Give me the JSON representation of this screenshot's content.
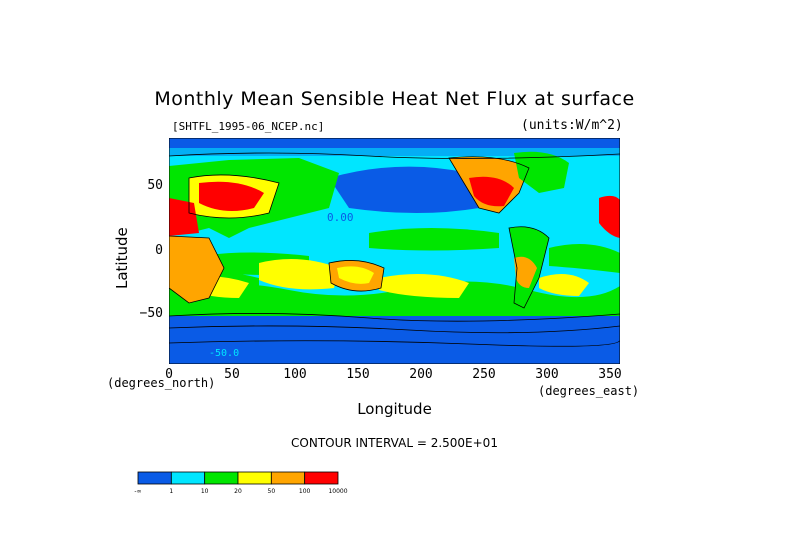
{
  "title": "Monthly Mean Sensible Heat Net Flux at surface",
  "file_label": "[SHTFL_1995-06_NCEP.nc]",
  "units_label": "(units:W/m^2)",
  "contour_interval": "CONTOUR INTERVAL = 2.500E+01",
  "chart_data": {
    "type": "heatmap",
    "title": "Monthly Mean Sensible Heat Net Flux at surface",
    "xlabel": "Longitude",
    "ylabel": "Latitude",
    "x_unit_label": "(degrees_east)",
    "y_unit_label": "(degrees_north)",
    "xlim": [
      0,
      360
    ],
    "ylim": [
      -90,
      90
    ],
    "x_ticks": [
      "0",
      "50",
      "100",
      "150",
      "200",
      "250",
      "300",
      "350"
    ],
    "y_ticks": [
      "50",
      "0",
      "−50"
    ],
    "contour_labels": [
      "0.00",
      "-50.0"
    ],
    "legend": {
      "placement": "bottom-left",
      "tick_labels": [
        "-∞",
        "1",
        "10",
        "20",
        "50",
        "100",
        "10000"
      ],
      "colors": [
        "#0a5be6",
        "#00e6ff",
        "#00e600",
        "#ffff00",
        "#ffa500",
        "#ff0000"
      ]
    }
  }
}
